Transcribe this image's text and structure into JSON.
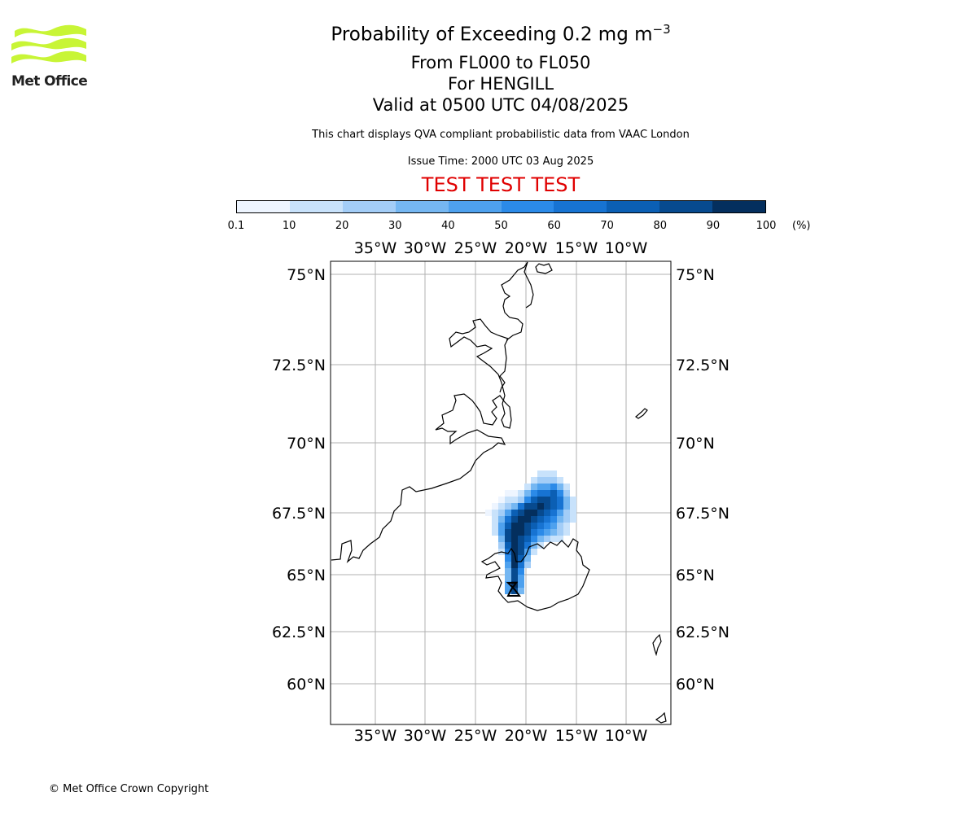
{
  "header": {
    "title_main": "Probability of Exceeding 0.2 mg m",
    "title_sup": "−3",
    "level_range": "From FL000 to FL050",
    "volcano": "For HENGILL",
    "valid_time": "Valid at 0500 UTC 04/08/2025",
    "description": "This chart displays QVA compliant probabilistic data from VAAC London",
    "issue_time": "Issue Time: 2000 UTC 03 Aug 2025",
    "test_banner": "TEST TEST TEST"
  },
  "logo": {
    "text": "Met Office",
    "color": "#c8f536"
  },
  "colorbar": {
    "ticks": [
      "0.1",
      "10",
      "20",
      "30",
      "40",
      "50",
      "60",
      "70",
      "80",
      "90",
      "100"
    ],
    "unit": "(%)",
    "colors": [
      "#eef5ff",
      "#c8e2fb",
      "#a3cdf7",
      "#75b7f2",
      "#4ea1ee",
      "#2b8ae8",
      "#1773d2",
      "#0b5fb4",
      "#074a8f",
      "#042f5e"
    ]
  },
  "map": {
    "lon_labels": [
      "35°W",
      "30°W",
      "25°W",
      "20°W",
      "15°W",
      "10°W"
    ],
    "lat_labels": [
      "75°N",
      "72.5°N",
      "70°N",
      "67.5°N",
      "65°N",
      "62.5°N",
      "60°N"
    ],
    "coastline_color": "#000000",
    "grid_color": "#b0b0b0"
  },
  "footer": {
    "copyright": "© Met Office Crown Copyright"
  }
}
